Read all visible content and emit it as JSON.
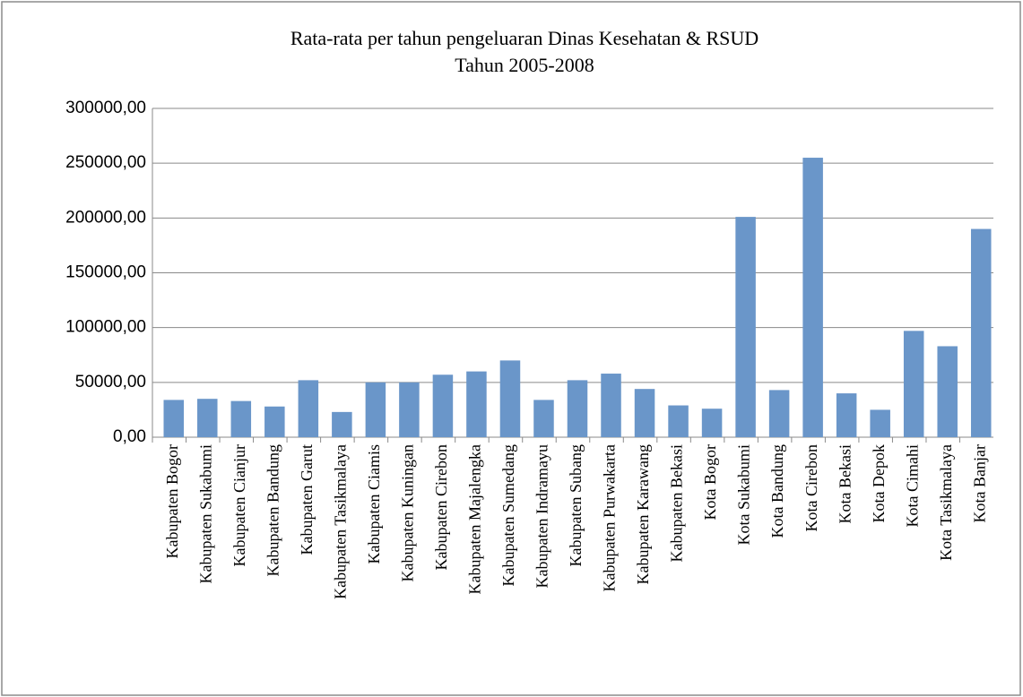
{
  "chart_data": {
    "type": "bar",
    "title": "Rata-rata per tahun pengeluaran Dinas Kesehatan & RSUD",
    "subtitle": "Tahun 2005-2008",
    "categories": [
      "Kabupaten Bogor",
      "Kabupaten Sukabumi",
      "Kabupaten Cianjur",
      "Kabupaten Bandung",
      "Kabupaten Garut",
      "Kabupaten Tasikmalaya",
      "Kabupaten Ciamis",
      "Kabupaten Kuningan",
      "Kabupaten Cirebon",
      "Kabupaten Majalengka",
      "Kabupaten Sumedang",
      "Kabupaten Indramayu",
      "Kabupaten Subang",
      "Kabupaten Purwakarta",
      "Kabupaten Karawang",
      "Kabupaten Bekasi",
      "Kota Bogor",
      "Kota Sukabumi",
      "Kota Bandung",
      "Kota Cirebon",
      "Kota Bekasi",
      "Kota Depok",
      "Kota Cimahi",
      "Kota Tasikmalaya",
      "Kota Banjar"
    ],
    "values": [
      34000,
      35000,
      33000,
      28000,
      52000,
      23000,
      50000,
      50000,
      57000,
      60000,
      70000,
      34000,
      52000,
      58000,
      44000,
      29000,
      26000,
      201000,
      43000,
      255000,
      40000,
      25000,
      97000,
      83000,
      190000
    ],
    "color": "#6a96c9",
    "ylim": [
      0,
      300000
    ],
    "yticks": [
      {
        "value": 0,
        "label": "0,00"
      },
      {
        "value": 50000,
        "label": "50000,00"
      },
      {
        "value": 100000,
        "label": "100000,00"
      },
      {
        "value": 150000,
        "label": "150000,00"
      },
      {
        "value": 200000,
        "label": "200000,00"
      },
      {
        "value": 250000,
        "label": "250000,00"
      },
      {
        "value": 300000,
        "label": "300000,00"
      }
    ],
    "grid": true
  }
}
